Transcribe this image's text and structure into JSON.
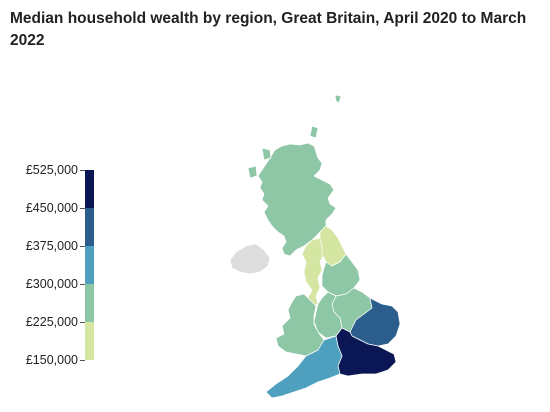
{
  "title": "Median household wealth by region, Great Britain, April 2020 to March 2022",
  "legend": {
    "ticks": [
      "£525,000",
      "£450,000",
      "£375,000",
      "£300,000",
      "£225,000",
      "£150,000"
    ],
    "bands": [
      {
        "from": 450000,
        "to": 525000,
        "color": "#0b1754"
      },
      {
        "from": 375000,
        "to": 450000,
        "color": "#2b5e8c"
      },
      {
        "from": 300000,
        "to": 375000,
        "color": "#4fa0bf"
      },
      {
        "from": 225000,
        "to": 300000,
        "color": "#8ec7a6"
      },
      {
        "from": 150000,
        "to": 225000,
        "color": "#d4e6a1"
      }
    ]
  },
  "regions": [
    {
      "name": "Scotland",
      "color": "#8ec7a6"
    },
    {
      "name": "North East",
      "color": "#d4e6a1"
    },
    {
      "name": "North West",
      "color": "#d4e6a1"
    },
    {
      "name": "Yorkshire and The Humber",
      "color": "#8ec7a6"
    },
    {
      "name": "Wales",
      "color": "#8ec7a6"
    },
    {
      "name": "West Midlands",
      "color": "#8ec7a6"
    },
    {
      "name": "East Midlands",
      "color": "#8ec7a6"
    },
    {
      "name": "East of England",
      "color": "#2b5e8c"
    },
    {
      "name": "London",
      "color": "#8ec7a6"
    },
    {
      "name": "South East",
      "color": "#0b1754"
    },
    {
      "name": "South West",
      "color": "#4fa0bf"
    },
    {
      "name": "Northern Ireland",
      "color": "#dddddd"
    }
  ]
}
